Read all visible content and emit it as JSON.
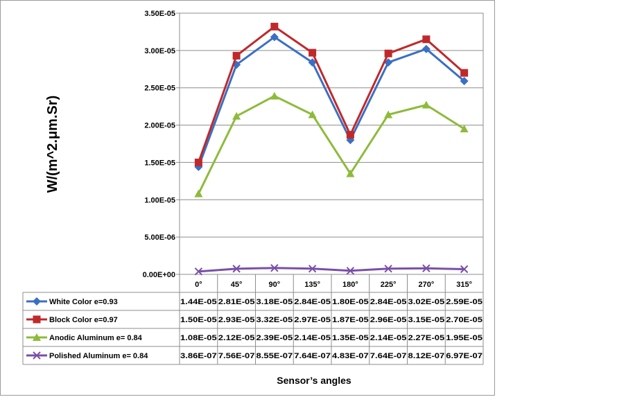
{
  "chart_data": {
    "type": "line",
    "title": "",
    "xlabel": "Sensor’s angles",
    "ylabel": "W/(m^2.μm.Sr)",
    "categories": [
      "0°",
      "45°",
      "90°",
      "135°",
      "180°",
      "225°",
      "270°",
      "315°"
    ],
    "ylim": [
      0,
      3.5e-05
    ],
    "yticks": [
      0,
      5e-06,
      1e-05,
      1.5e-05,
      2e-05,
      2.5e-05,
      3e-05,
      3.5e-05
    ],
    "ytick_labels": [
      "0.00E+00",
      "5.00E-06",
      "1.00E-05",
      "1.50E-05",
      "2.00E-05",
      "2.50E-05",
      "3.00E-05",
      "3.50E-05"
    ],
    "grid": true,
    "legend": "data-table",
    "series": [
      {
        "name": "White Color e=0.93",
        "color": "#3a6fc4",
        "marker": "diamond",
        "values": [
          1.44e-05,
          2.81e-05,
          3.18e-05,
          2.84e-05,
          1.8e-05,
          2.84e-05,
          3.02e-05,
          2.59e-05
        ],
        "labels": [
          "1.44E-05",
          "2.81E-05",
          "3.18E-05",
          "2.84E-05",
          "1.80E-05",
          "2.84E-05",
          "3.02E-05",
          "2.59E-05"
        ]
      },
      {
        "name": "Block Color e=0.97",
        "color": "#c0292b",
        "marker": "square",
        "values": [
          1.5e-05,
          2.93e-05,
          3.32e-05,
          2.97e-05,
          1.87e-05,
          2.96e-05,
          3.15e-05,
          2.7e-05
        ],
        "labels": [
          "1.50E-05",
          "2.93E-05",
          "3.32E-05",
          "2.97E-05",
          "1.87E-05",
          "2.96E-05",
          "3.15E-05",
          "2.70E-05"
        ]
      },
      {
        "name": "Anodic Aluminum e= 0.84",
        "color": "#8dbb3a",
        "marker": "triangle",
        "values": [
          1.08e-05,
          2.12e-05,
          2.39e-05,
          2.14e-05,
          1.35e-05,
          2.14e-05,
          2.27e-05,
          1.95e-05
        ],
        "labels": [
          "1.08E-05",
          "2.12E-05",
          "2.39E-05",
          "2.14E-05",
          "1.35E-05",
          "2.14E-05",
          "2.27E-05",
          "1.95E-05"
        ]
      },
      {
        "name": "Polished Aluminum e= 0.84",
        "color": "#7a4fa8",
        "marker": "x",
        "values": [
          3.86e-07,
          7.56e-07,
          8.55e-07,
          7.64e-07,
          4.83e-07,
          7.64e-07,
          8.12e-07,
          6.97e-07
        ],
        "labels": [
          "3.86E-07",
          "7.56E-07",
          "8.55E-07",
          "7.64E-07",
          "4.83E-07",
          "7.64E-07",
          "8.12E-07",
          "6.97E-07"
        ]
      }
    ]
  }
}
